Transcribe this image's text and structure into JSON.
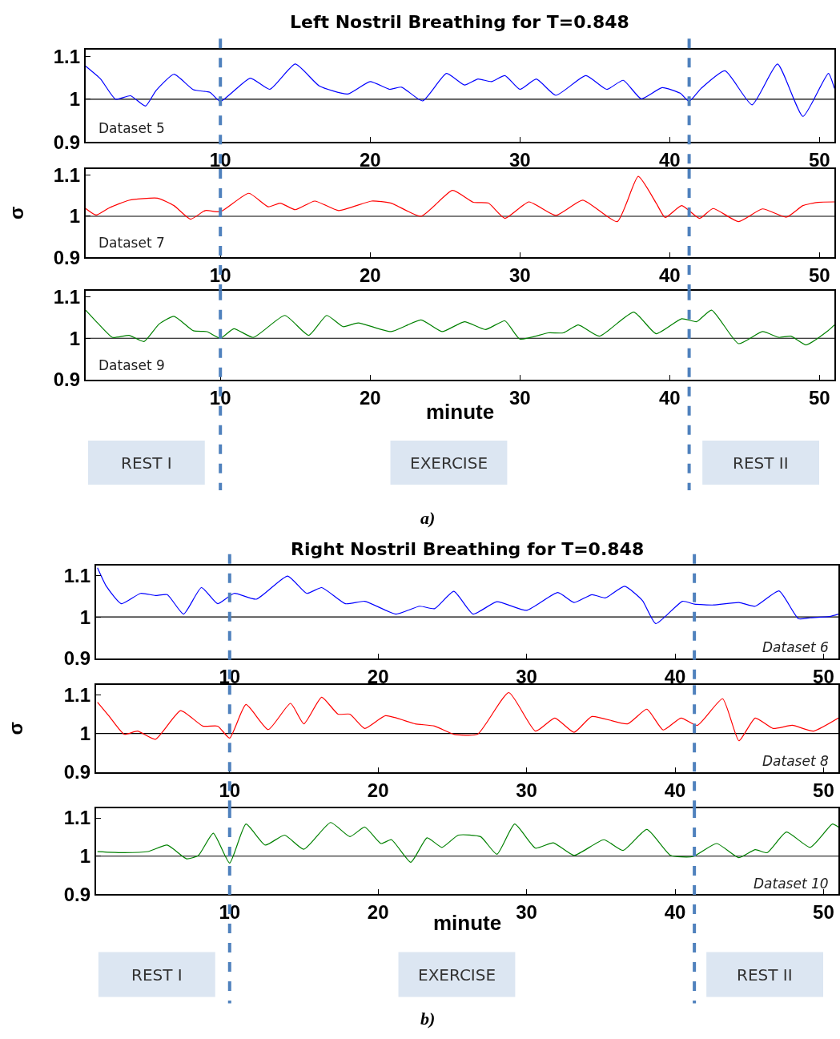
{
  "chart_data": [
    {
      "type": "line",
      "title": "Left Nostril Breathing for T=0.848",
      "xlim": [
        1,
        51
      ],
      "xticks": [
        10,
        20,
        30,
        40,
        50
      ],
      "ylim": [
        0.9,
        1.115
      ],
      "yticks": [
        0.9,
        1,
        1.1
      ],
      "grid": false,
      "ref_lines": [
        {
          "axis": "x",
          "value": 10,
          "color": "#4f81bd",
          "line_style": "dashed"
        },
        {
          "axis": "x",
          "value": 41.3,
          "color": "#4f81bd",
          "line_style": "dashed"
        },
        {
          "axis": "y",
          "value": 1,
          "color": "#000000",
          "line_style": "solid"
        }
      ],
      "series": [
        {
          "name": "Dataset 5",
          "color": "#0000ff",
          "x": [
            1.0,
            2.0,
            3.0,
            4.0,
            5.0,
            5.7,
            6.9,
            8.2,
            9.3,
            10,
            12.0,
            13.3,
            15.0,
            16.6,
            18.5,
            20,
            21.3,
            22.1,
            23.5,
            25.1,
            26.3,
            27.2,
            28.1,
            29.0,
            30.0,
            31.1,
            32.4,
            34.4,
            35.8,
            36.9,
            38.1,
            39.5,
            40.7,
            41.3,
            42.1,
            43.7,
            45.5,
            47.2,
            48.9,
            50.6,
            51.0
          ],
          "values": [
            1.077,
            1.047,
            1.0,
            1.008,
            0.984,
            1.02,
            1.058,
            1.022,
            1.016,
            0.995,
            1.049,
            1.023,
            1.082,
            1.031,
            1.012,
            1.041,
            1.023,
            1.028,
            0.996,
            1.06,
            1.033,
            1.047,
            1.041,
            1.055,
            1.023,
            1.047,
            1.009,
            1.055,
            1.023,
            1.044,
            1.001,
            1.027,
            1.014,
            0.995,
            1.025,
            1.066,
            0.987,
            1.082,
            0.96,
            1.06,
            1.025
          ]
        }
      ]
    },
    {
      "type": "line",
      "ylabel": "σ",
      "xlim": [
        1,
        51
      ],
      "xticks": [
        10,
        20,
        30,
        40,
        50
      ],
      "ylim": [
        0.9,
        1.115
      ],
      "yticks": [
        0.9,
        1,
        1.1
      ],
      "grid": false,
      "ref_lines": [
        {
          "axis": "x",
          "value": 10,
          "color": "#4f81bd",
          "line_style": "dashed"
        },
        {
          "axis": "x",
          "value": 41.3,
          "color": "#4f81bd",
          "line_style": "dashed"
        },
        {
          "axis": "y",
          "value": 1,
          "color": "#000000",
          "line_style": "solid"
        }
      ],
      "series": [
        {
          "name": "Dataset 7",
          "color": "#ff0000",
          "x": [
            1.0,
            1.7,
            2.6,
            3.9,
            5.8,
            6.9,
            8.0,
            9.0,
            10,
            11.9,
            13.2,
            14.0,
            15.0,
            16.3,
            17.9,
            20.1,
            21.4,
            23.4,
            25.5,
            26.9,
            27.9,
            29.0,
            30.6,
            32.4,
            34.2,
            36.5,
            37.9,
            39.1,
            39.7,
            40.8,
            42.0,
            42.9,
            44.6,
            46.2,
            47.8,
            48.9,
            49.9,
            51.0
          ],
          "values": [
            1.019,
            1.003,
            1.021,
            1.039,
            1.044,
            1.026,
            0.993,
            1.014,
            1.011,
            1.056,
            1.023,
            1.032,
            1.016,
            1.037,
            1.014,
            1.037,
            1.032,
            1.0,
            1.063,
            1.034,
            1.032,
            0.995,
            1.035,
            1.002,
            1.039,
            0.987,
            1.097,
            1.032,
            0.997,
            1.026,
            0.995,
            1.019,
            0.987,
            1.018,
            0.998,
            1.026,
            1.034,
            1.035
          ]
        }
      ]
    },
    {
      "type": "line",
      "xlabel": "minute",
      "xlim": [
        1,
        51
      ],
      "xticks": [
        10,
        20,
        30,
        40,
        50
      ],
      "ylim": [
        0.9,
        1.115
      ],
      "yticks": [
        0.9,
        1,
        1.1
      ],
      "grid": false,
      "annotations": [
        "REST I",
        "EXERCISE",
        "REST II",
        "a)"
      ],
      "ref_lines": [
        {
          "axis": "x",
          "value": 10,
          "color": "#4f81bd",
          "line_style": "dashed"
        },
        {
          "axis": "x",
          "value": 41.3,
          "color": "#4f81bd",
          "line_style": "dashed"
        },
        {
          "axis": "y",
          "value": 1,
          "color": "#000000",
          "line_style": "solid"
        }
      ],
      "series": [
        {
          "name": "Dataset 9",
          "color": "#008000",
          "x": [
            1.0,
            1.8,
            2.8,
            3.9,
            4.9,
            5.9,
            6.9,
            8.2,
            9.1,
            10,
            10.9,
            12.2,
            14.3,
            15.9,
            17.1,
            18.2,
            19.2,
            21.4,
            23.4,
            24.8,
            26.3,
            27.7,
            29.0,
            30.0,
            31.9,
            32.9,
            33.9,
            35.3,
            37.6,
            39.1,
            40.8,
            41.8,
            42.8,
            44.6,
            46.2,
            47.3,
            48.1,
            49.1,
            50.6,
            51.0
          ],
          "values": [
            1.068,
            1.037,
            1.002,
            1.007,
            0.992,
            1.034,
            1.053,
            1.018,
            1.016,
            1.0,
            1.023,
            1.002,
            1.055,
            1.007,
            1.055,
            1.028,
            1.037,
            1.016,
            1.044,
            1.016,
            1.04,
            1.021,
            1.042,
            0.998,
            1.013,
            1.013,
            1.032,
            1.005,
            1.063,
            1.011,
            1.047,
            1.04,
            1.068,
            0.987,
            1.016,
            1.002,
            1.005,
            0.984,
            1.019,
            1.032
          ]
        }
      ]
    },
    {
      "type": "line",
      "title": "Right Nostril Breathing for T=0.848",
      "xlim": [
        1,
        51
      ],
      "xticks": [
        10,
        20,
        30,
        40,
        50
      ],
      "ylim": [
        0.9,
        1.125
      ],
      "yticks": [
        0.9,
        1,
        1.1
      ],
      "grid": false,
      "ref_lines": [
        {
          "axis": "x",
          "value": 10,
          "color": "#4f81bd",
          "line_style": "dashed"
        },
        {
          "axis": "x",
          "value": 41.3,
          "color": "#4f81bd",
          "line_style": "dashed"
        },
        {
          "axis": "y",
          "value": 1,
          "color": "#000000",
          "line_style": "solid"
        }
      ],
      "series": [
        {
          "name": "Dataset 6",
          "color": "#0000ff",
          "x": [
            1.1,
            1.7,
            2.7,
            4.0,
            5.0,
            5.8,
            6.9,
            8.1,
            9.2,
            10.3,
            11.8,
            13.9,
            15.2,
            16.2,
            17.8,
            19.1,
            21.2,
            22.8,
            23.8,
            25.1,
            26.4,
            28.0,
            30.0,
            32.1,
            33.2,
            34.4,
            35.3,
            36.6,
            37.8,
            38.7,
            40.5,
            41.3,
            42.6,
            44.3,
            45.4,
            47.0,
            48.3,
            49.1,
            50.4,
            51.0
          ],
          "values": [
            1.119,
            1.074,
            1.032,
            1.057,
            1.052,
            1.054,
            1.007,
            1.071,
            1.032,
            1.057,
            1.043,
            1.099,
            1.057,
            1.071,
            1.032,
            1.038,
            1.007,
            1.026,
            1.02,
            1.062,
            1.007,
            1.037,
            1.016,
            1.059,
            1.035,
            1.054,
            1.046,
            1.074,
            1.04,
            0.984,
            1.038,
            1.031,
            1.029,
            1.035,
            1.026,
            1.063,
            0.996,
            0.998,
            1.001,
            1.007
          ]
        }
      ]
    },
    {
      "type": "line",
      "ylabel": "σ",
      "xlim": [
        1,
        51
      ],
      "xticks": [
        10,
        20,
        30,
        40,
        50
      ],
      "ylim": [
        0.9,
        1.125
      ],
      "yticks": [
        0.9,
        1,
        1.1
      ],
      "grid": false,
      "ref_lines": [
        {
          "axis": "x",
          "value": 10,
          "color": "#4f81bd",
          "line_style": "dashed"
        },
        {
          "axis": "x",
          "value": 41.3,
          "color": "#4f81bd",
          "line_style": "dashed"
        },
        {
          "axis": "y",
          "value": 1,
          "color": "#000000",
          "line_style": "solid"
        }
      ],
      "series": [
        {
          "name": "Dataset 8",
          "color": "#ff0000",
          "x": [
            1.1,
            1.9,
            2.9,
            3.8,
            5.0,
            6.7,
            8.2,
            9.2,
            10,
            11.1,
            12.6,
            14.1,
            15.0,
            16.2,
            17.3,
            18.1,
            19.1,
            20.5,
            22.5,
            23.8,
            25.1,
            26.7,
            28.8,
            30.6,
            31.9,
            33.2,
            34.4,
            36.8,
            38.1,
            39.2,
            40.4,
            41.5,
            43.2,
            44.3,
            45.4,
            46.6,
            47.9,
            49.3,
            51.0
          ],
          "values": [
            1.081,
            1.044,
            0.998,
            1.006,
            0.985,
            1.059,
            1.019,
            1.019,
            0.988,
            1.075,
            1.01,
            1.078,
            1.025,
            1.094,
            1.05,
            1.05,
            1.013,
            1.046,
            1.025,
            1.019,
            0.998,
            0.998,
            1.106,
            1.006,
            1.04,
            1.003,
            1.044,
            1.025,
            1.063,
            1.009,
            1.04,
            1.021,
            1.09,
            0.981,
            1.04,
            1.013,
            1.021,
            1.006,
            1.04
          ]
        }
      ]
    },
    {
      "type": "line",
      "xlabel": "minute",
      "xlim": [
        1,
        51
      ],
      "xticks": [
        10,
        20,
        30,
        40,
        50
      ],
      "ylim": [
        0.9,
        1.125
      ],
      "yticks": [
        0.9,
        1,
        1.1
      ],
      "grid": false,
      "annotations": [
        "REST I",
        "EXERCISE",
        "REST II",
        "b)"
      ],
      "ref_lines": [
        {
          "axis": "x",
          "value": 10,
          "color": "#4f81bd",
          "line_style": "dashed"
        },
        {
          "axis": "x",
          "value": 41.3,
          "color": "#4f81bd",
          "line_style": "dashed"
        },
        {
          "axis": "y",
          "value": 1,
          "color": "#000000",
          "line_style": "solid"
        }
      ],
      "series": [
        {
          "name": "Dataset 10",
          "color": "#008000",
          "x": [
            1.1,
            2.9,
            4.5,
            5.8,
            7.1,
            7.9,
            8.9,
            10,
            11.1,
            12.4,
            13.7,
            15.0,
            16.8,
            18.1,
            19.1,
            20.2,
            20.9,
            22.2,
            23.3,
            24.3,
            25.4,
            26.9,
            28.0,
            29.2,
            30.6,
            31.8,
            33.2,
            35.2,
            36.5,
            38.1,
            39.7,
            41.2,
            42.8,
            44.3,
            45.4,
            46.2,
            47.5,
            49.1,
            50.6,
            51.0
          ],
          "values": [
            1.012,
            1.009,
            1.012,
            1.029,
            0.993,
            1.002,
            1.06,
            0.982,
            1.084,
            1.029,
            1.055,
            1.018,
            1.088,
            1.051,
            1.076,
            1.033,
            1.043,
            0.984,
            1.048,
            1.023,
            1.055,
            1.051,
            1.005,
            1.084,
            1.021,
            1.035,
            1.002,
            1.043,
            1.015,
            1.07,
            1.002,
            0.999,
            1.033,
            0.996,
            1.017,
            1.009,
            1.063,
            1.023,
            1.084,
            1.076
          ]
        }
      ]
    }
  ]
}
